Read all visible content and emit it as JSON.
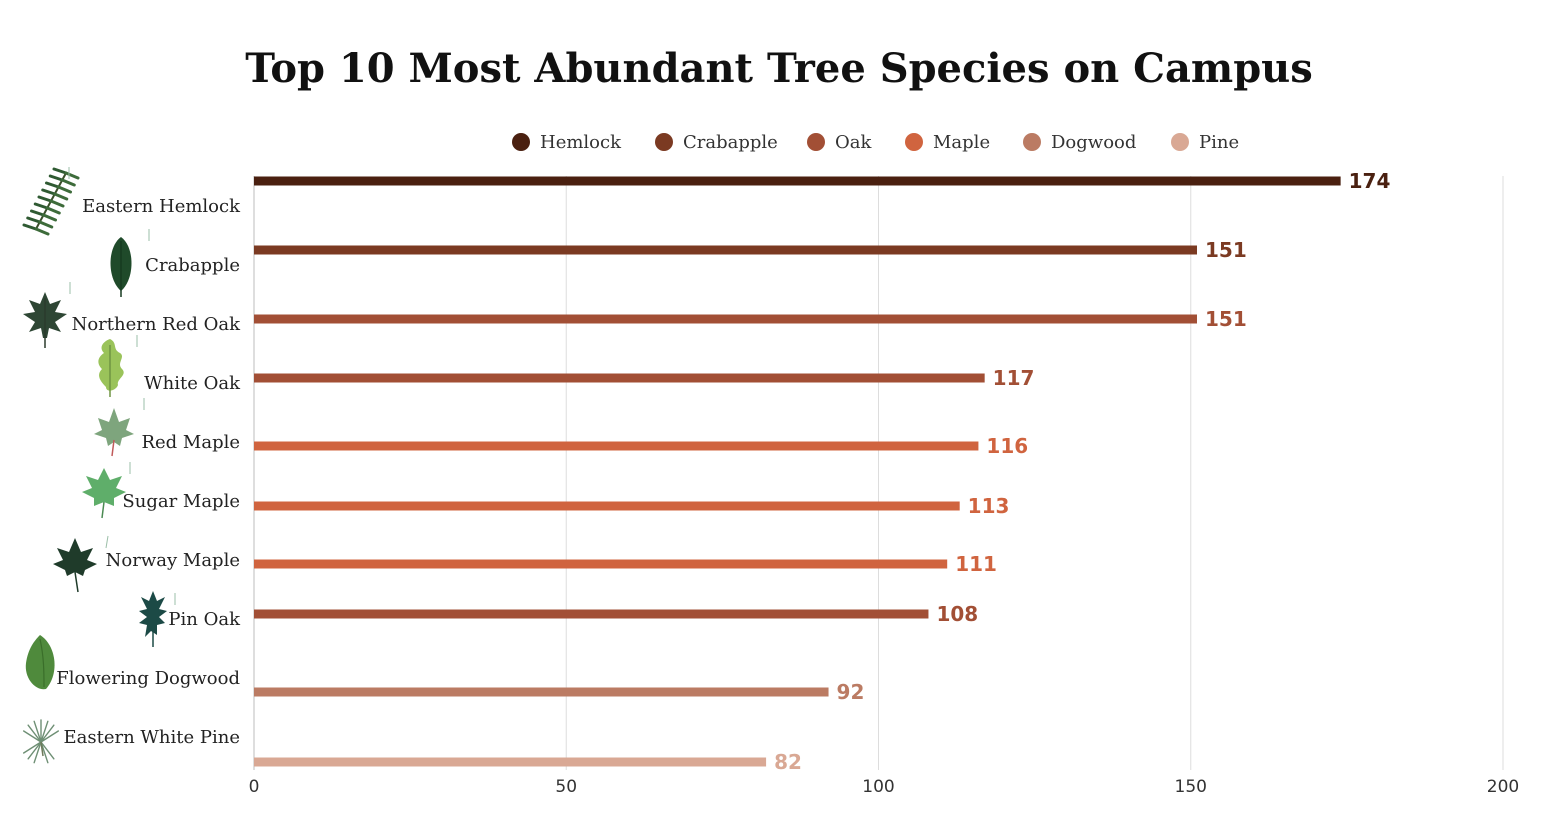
{
  "chart_data": {
    "type": "bar",
    "orientation": "horizontal",
    "title": "Top 10 Most Abundant Tree Species on Campus",
    "xlabel": "",
    "ylabel": "",
    "xlim": [
      0,
      200
    ],
    "x_ticks": [
      "0",
      "50",
      "100",
      "150",
      "200"
    ],
    "grid": "vertical",
    "legend_position": "top",
    "legend": [
      {
        "label": "Hemlock",
        "color": "#4a2010"
      },
      {
        "label": "Crabapple",
        "color": "#7b3a22"
      },
      {
        "label": "Oak",
        "color": "#a24f35"
      },
      {
        "label": "Maple",
        "color": "#d0643f"
      },
      {
        "label": "Dogwood",
        "color": "#bb7b63"
      },
      {
        "label": "Pine",
        "color": "#d9a894"
      }
    ],
    "categories": [
      "Eastern Hemlock",
      "Crabapple",
      "Northern Red Oak",
      "White Oak",
      "Red Maple",
      "Sugar Maple",
      "Norway Maple",
      "Pin Oak",
      "Flowering Dogwood",
      "Eastern White Pine"
    ],
    "groups": [
      "Hemlock",
      "Crabapple",
      "Oak",
      "Oak",
      "Maple",
      "Maple",
      "Maple",
      "Oak",
      "Dogwood",
      "Pine"
    ],
    "values": [
      174,
      151,
      151,
      117,
      116,
      113,
      111,
      108,
      92,
      82
    ],
    "value_labels": [
      "174",
      "151",
      "151",
      "117",
      "116",
      "113",
      "111",
      "108",
      "92",
      "82"
    ],
    "icons": [
      "hemlock-branch-icon",
      "crabapple-leaf-icon",
      "red-oak-leaf-icon",
      "white-oak-leaf-icon",
      "red-maple-leaf-icon",
      "sugar-maple-leaf-icon",
      "norway-maple-leaf-icon",
      "pin-oak-leaf-icon",
      "dogwood-leaf-icon",
      "white-pine-needles-icon"
    ]
  }
}
